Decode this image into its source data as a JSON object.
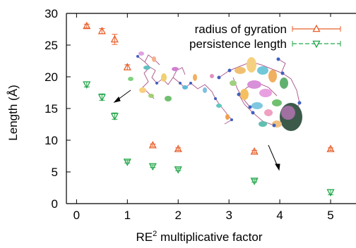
{
  "chart_data": {
    "type": "scatter",
    "title": "",
    "xlabel_base": "RE",
    "xlabel_sup": "2",
    "xlabel_rest": " multiplicative factor",
    "ylabel": "Length (Å)",
    "xlim": [
      -0.2,
      5.5
    ],
    "ylim": [
      0,
      30
    ],
    "x_ticks": [
      0,
      1,
      2,
      3,
      4,
      5
    ],
    "y_ticks": [
      0,
      5,
      10,
      15,
      20,
      25,
      30
    ],
    "grid": false,
    "legend_position": "top-right",
    "series": [
      {
        "name": "radius of gyration",
        "color": "#e8602c",
        "marker": "triangle-up",
        "line_style": "solid",
        "points": [
          {
            "x": 0.2,
            "y": 28.0,
            "err": 0.3
          },
          {
            "x": 0.5,
            "y": 27.2,
            "err": 0.4
          },
          {
            "x": 0.75,
            "y": 25.9,
            "err": 0.8
          },
          {
            "x": 1.0,
            "y": 21.5,
            "err": 0.4
          },
          {
            "x": 1.5,
            "y": 9.2,
            "err": 0.2
          },
          {
            "x": 2.0,
            "y": 8.6,
            "err": 0.2
          },
          {
            "x": 3.5,
            "y": 8.2,
            "err": 0.2
          },
          {
            "x": 5.0,
            "y": 8.6,
            "err": 0.2
          }
        ]
      },
      {
        "name": "persistence length",
        "color": "#22a64a",
        "marker": "triangle-down",
        "line_style": "dashed",
        "points": [
          {
            "x": 0.2,
            "y": 18.8,
            "err": 0.4
          },
          {
            "x": 0.5,
            "y": 16.8,
            "err": 0.5
          },
          {
            "x": 0.75,
            "y": 13.8,
            "err": 0.5
          },
          {
            "x": 1.0,
            "y": 6.6,
            "err": 0.2
          },
          {
            "x": 1.5,
            "y": 5.9,
            "err": 0.2
          },
          {
            "x": 2.0,
            "y": 5.4,
            "err": 0.2
          },
          {
            "x": 3.5,
            "y": 3.6,
            "err": 0.2
          },
          {
            "x": 5.0,
            "y": 1.8,
            "err": 0.4
          }
        ]
      }
    ]
  }
}
